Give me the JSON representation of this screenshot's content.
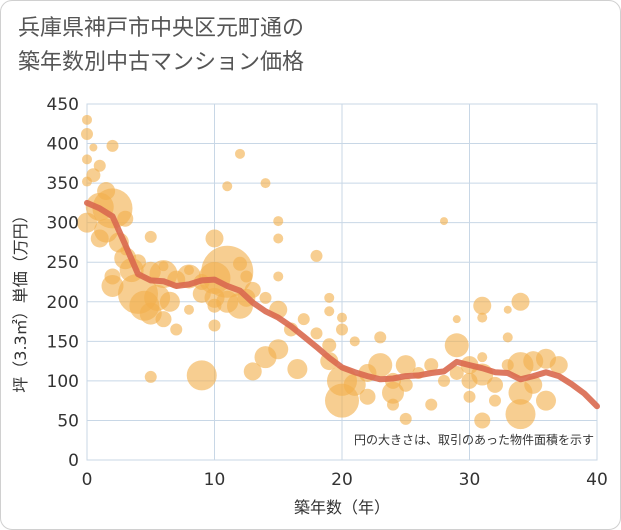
{
  "title_line1": "兵庫県神戸市中央区元町通の",
  "title_line2": "築年数別中古マンション価格",
  "chart_data": {
    "type": "scatter",
    "xlabel": "築年数（年）",
    "ylabel": "坪（3.3㎡）単価（万円）",
    "xlim": [
      0,
      40
    ],
    "ylim": [
      0,
      450
    ],
    "xticks": [
      "0",
      "10",
      "20",
      "30",
      "40"
    ],
    "yticks": [
      "0",
      "50",
      "100",
      "150",
      "200",
      "250",
      "300",
      "350",
      "400",
      "450"
    ],
    "annotation": "円の大きさは、取引のあった物件面積を示す",
    "grid": true,
    "colors": {
      "bubble": "#f2b04e",
      "trend": "#d9694f",
      "grid": "#c8d7e6"
    },
    "trend": {
      "x": [
        0,
        1,
        2,
        3,
        4,
        5,
        6,
        7,
        8,
        9,
        10,
        11,
        12,
        13,
        14,
        15,
        16,
        17,
        18,
        19,
        20,
        21,
        22,
        23,
        24,
        25,
        26,
        27,
        28,
        29,
        30,
        31,
        32,
        33,
        34,
        35,
        36,
        37,
        38,
        39,
        40
      ],
      "y": [
        325,
        318,
        308,
        272,
        235,
        227,
        226,
        220,
        222,
        227,
        228,
        220,
        214,
        199,
        188,
        180,
        169,
        156,
        143,
        129,
        117,
        111,
        106,
        102,
        103,
        106,
        107,
        110,
        112,
        124,
        120,
        116,
        111,
        110,
        102,
        106,
        111,
        106,
        96,
        84,
        68
      ]
    },
    "points": [
      {
        "x": 0,
        "y": 430,
        "s": 5
      },
      {
        "x": 0,
        "y": 412,
        "s": 6
      },
      {
        "x": 0.5,
        "y": 395,
        "s": 4
      },
      {
        "x": 0,
        "y": 380,
        "s": 5
      },
      {
        "x": 1,
        "y": 372,
        "s": 6
      },
      {
        "x": 0.5,
        "y": 360,
        "s": 7
      },
      {
        "x": 0,
        "y": 352,
        "s": 5
      },
      {
        "x": 1.5,
        "y": 340,
        "s": 9
      },
      {
        "x": 2,
        "y": 318,
        "s": 20
      },
      {
        "x": 1,
        "y": 320,
        "s": 14
      },
      {
        "x": 3,
        "y": 305,
        "s": 8
      },
      {
        "x": 0,
        "y": 300,
        "s": 10
      },
      {
        "x": 1.5,
        "y": 290,
        "s": 12
      },
      {
        "x": 2.5,
        "y": 275,
        "s": 10
      },
      {
        "x": 1,
        "y": 280,
        "s": 9
      },
      {
        "x": 5,
        "y": 282,
        "s": 6
      },
      {
        "x": 3,
        "y": 255,
        "s": 11
      },
      {
        "x": 4,
        "y": 250,
        "s": 8
      },
      {
        "x": 2,
        "y": 232,
        "s": 8
      },
      {
        "x": 3.5,
        "y": 240,
        "s": 12
      },
      {
        "x": 5,
        "y": 238,
        "s": 10
      },
      {
        "x": 6,
        "y": 235,
        "s": 14
      },
      {
        "x": 7,
        "y": 228,
        "s": 9
      },
      {
        "x": 8,
        "y": 232,
        "s": 12
      },
      {
        "x": 9,
        "y": 225,
        "s": 8
      },
      {
        "x": 10,
        "y": 230,
        "s": 16
      },
      {
        "x": 11,
        "y": 238,
        "s": 26
      },
      {
        "x": 12,
        "y": 248,
        "s": 7
      },
      {
        "x": 12.5,
        "y": 232,
        "s": 6
      },
      {
        "x": 2,
        "y": 220,
        "s": 11
      },
      {
        "x": 4,
        "y": 210,
        "s": 20
      },
      {
        "x": 5.5,
        "y": 205,
        "s": 13
      },
      {
        "x": 6.5,
        "y": 200,
        "s": 10
      },
      {
        "x": 4.5,
        "y": 195,
        "s": 15
      },
      {
        "x": 5,
        "y": 185,
        "s": 11
      },
      {
        "x": 6,
        "y": 178,
        "s": 8
      },
      {
        "x": 7,
        "y": 165,
        "s": 6
      },
      {
        "x": 8,
        "y": 190,
        "s": 5
      },
      {
        "x": 9,
        "y": 210,
        "s": 9
      },
      {
        "x": 10,
        "y": 205,
        "s": 10
      },
      {
        "x": 10,
        "y": 195,
        "s": 7
      },
      {
        "x": 11,
        "y": 200,
        "s": 11
      },
      {
        "x": 12,
        "y": 195,
        "s": 13
      },
      {
        "x": 12.5,
        "y": 205,
        "s": 9
      },
      {
        "x": 13,
        "y": 215,
        "s": 8
      },
      {
        "x": 14,
        "y": 205,
        "s": 6
      },
      {
        "x": 15,
        "y": 190,
        "s": 9
      },
      {
        "x": 15,
        "y": 232,
        "s": 5
      },
      {
        "x": 15,
        "y": 280,
        "s": 5
      },
      {
        "x": 15,
        "y": 302,
        "s": 5
      },
      {
        "x": 14,
        "y": 350,
        "s": 5
      },
      {
        "x": 11,
        "y": 346,
        "s": 5
      },
      {
        "x": 12,
        "y": 387,
        "s": 5
      },
      {
        "x": 2,
        "y": 397,
        "s": 6
      },
      {
        "x": 5,
        "y": 105,
        "s": 6
      },
      {
        "x": 9,
        "y": 107,
        "s": 15
      },
      {
        "x": 10,
        "y": 170,
        "s": 6
      },
      {
        "x": 10,
        "y": 280,
        "s": 9
      },
      {
        "x": 13,
        "y": 112,
        "s": 9
      },
      {
        "x": 14,
        "y": 130,
        "s": 11
      },
      {
        "x": 15,
        "y": 140,
        "s": 10
      },
      {
        "x": 16,
        "y": 165,
        "s": 7
      },
      {
        "x": 16.5,
        "y": 115,
        "s": 10
      },
      {
        "x": 17,
        "y": 178,
        "s": 6
      },
      {
        "x": 18,
        "y": 160,
        "s": 6
      },
      {
        "x": 18,
        "y": 258,
        "s": 6
      },
      {
        "x": 19,
        "y": 205,
        "s": 5
      },
      {
        "x": 19,
        "y": 188,
        "s": 5
      },
      {
        "x": 19,
        "y": 145,
        "s": 7
      },
      {
        "x": 19,
        "y": 125,
        "s": 9
      },
      {
        "x": 20,
        "y": 100,
        "s": 15
      },
      {
        "x": 20,
        "y": 75,
        "s": 17
      },
      {
        "x": 20,
        "y": 165,
        "s": 6
      },
      {
        "x": 20,
        "y": 180,
        "s": 5
      },
      {
        "x": 21,
        "y": 150,
        "s": 5
      },
      {
        "x": 21,
        "y": 95,
        "s": 11
      },
      {
        "x": 22,
        "y": 110,
        "s": 9
      },
      {
        "x": 22,
        "y": 80,
        "s": 8
      },
      {
        "x": 23,
        "y": 120,
        "s": 12
      },
      {
        "x": 23,
        "y": 155,
        "s": 6
      },
      {
        "x": 24,
        "y": 100,
        "s": 8
      },
      {
        "x": 24,
        "y": 85,
        "s": 11
      },
      {
        "x": 24,
        "y": 70,
        "s": 6
      },
      {
        "x": 25,
        "y": 120,
        "s": 10
      },
      {
        "x": 25,
        "y": 95,
        "s": 7
      },
      {
        "x": 25,
        "y": 52,
        "s": 6
      },
      {
        "x": 26,
        "y": 110,
        "s": 6
      },
      {
        "x": 27,
        "y": 120,
        "s": 7
      },
      {
        "x": 27,
        "y": 70,
        "s": 6
      },
      {
        "x": 28,
        "y": 302,
        "s": 4
      },
      {
        "x": 28,
        "y": 100,
        "s": 6
      },
      {
        "x": 29,
        "y": 145,
        "s": 12
      },
      {
        "x": 29,
        "y": 110,
        "s": 7
      },
      {
        "x": 29,
        "y": 178,
        "s": 4
      },
      {
        "x": 30,
        "y": 120,
        "s": 9
      },
      {
        "x": 30,
        "y": 100,
        "s": 8
      },
      {
        "x": 30,
        "y": 80,
        "s": 6
      },
      {
        "x": 31,
        "y": 195,
        "s": 9
      },
      {
        "x": 31,
        "y": 180,
        "s": 5
      },
      {
        "x": 31,
        "y": 130,
        "s": 5
      },
      {
        "x": 31,
        "y": 108,
        "s": 11
      },
      {
        "x": 31,
        "y": 50,
        "s": 8
      },
      {
        "x": 32,
        "y": 95,
        "s": 8
      },
      {
        "x": 32,
        "y": 75,
        "s": 6
      },
      {
        "x": 33,
        "y": 155,
        "s": 5
      },
      {
        "x": 33,
        "y": 190,
        "s": 4
      },
      {
        "x": 33,
        "y": 120,
        "s": 6
      },
      {
        "x": 34,
        "y": 200,
        "s": 9
      },
      {
        "x": 34,
        "y": 120,
        "s": 13
      },
      {
        "x": 34,
        "y": 85,
        "s": 12
      },
      {
        "x": 34,
        "y": 58,
        "s": 15
      },
      {
        "x": 35,
        "y": 125,
        "s": 10
      },
      {
        "x": 35,
        "y": 95,
        "s": 9
      },
      {
        "x": 36,
        "y": 128,
        "s": 10
      },
      {
        "x": 36,
        "y": 75,
        "s": 10
      },
      {
        "x": 37,
        "y": 120,
        "s": 9
      },
      {
        "x": 6,
        "y": 245,
        "s": 5
      },
      {
        "x": 8,
        "y": 240,
        "s": 5
      },
      {
        "x": 3,
        "y": 265,
        "s": 5
      }
    ]
  }
}
